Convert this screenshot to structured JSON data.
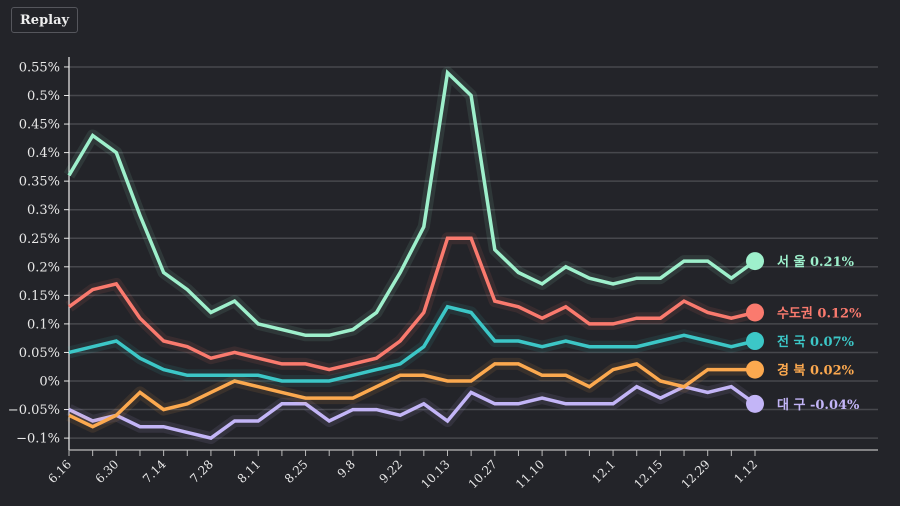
{
  "toolbar": {
    "replay_label": "Replay"
  },
  "chart_data": {
    "type": "line",
    "title": "",
    "xlabel": "",
    "ylabel": "",
    "ylim": [
      -0.12,
      0.57
    ],
    "grid": true,
    "legend_placement": "right (end-of-line labels)",
    "y_ticks": [
      {
        "value": 0.55,
        "label": "0.55%"
      },
      {
        "value": 0.5,
        "label": "0.5%"
      },
      {
        "value": 0.45,
        "label": "0.45%"
      },
      {
        "value": 0.4,
        "label": "0.4%"
      },
      {
        "value": 0.35,
        "label": "0.35%"
      },
      {
        "value": 0.3,
        "label": "0.3%"
      },
      {
        "value": 0.25,
        "label": "0.25%"
      },
      {
        "value": 0.2,
        "label": "0.2%"
      },
      {
        "value": 0.15,
        "label": "0.15%"
      },
      {
        "value": 0.1,
        "label": "0.1%"
      },
      {
        "value": 0.05,
        "label": "0.05%"
      },
      {
        "value": 0,
        "label": "0%"
      },
      {
        "value": -0.05,
        "label": "−0.05%"
      },
      {
        "value": -0.1,
        "label": "−0.1%"
      }
    ],
    "x_count": 30,
    "x_ticks": [
      {
        "index": 0,
        "label": "6.16"
      },
      {
        "index": 2,
        "label": "6.30"
      },
      {
        "index": 4,
        "label": "7.14"
      },
      {
        "index": 6,
        "label": "7.28"
      },
      {
        "index": 8,
        "label": "8.11"
      },
      {
        "index": 10,
        "label": "8.25"
      },
      {
        "index": 12,
        "label": "9.8"
      },
      {
        "index": 14,
        "label": "9.22"
      },
      {
        "index": 16,
        "label": "10.13"
      },
      {
        "index": 18,
        "label": "10.27"
      },
      {
        "index": 20,
        "label": "11.10"
      },
      {
        "index": 23,
        "label": "12.1"
      },
      {
        "index": 25,
        "label": "12.15"
      },
      {
        "index": 27,
        "label": "12.29"
      },
      {
        "index": 29,
        "label": "1.12"
      }
    ],
    "series": [
      {
        "name": "서 울",
        "end_label": "0.21%",
        "color": "#9ef0cc",
        "values": [
          0.36,
          0.43,
          0.4,
          0.29,
          0.19,
          0.16,
          0.12,
          0.14,
          0.1,
          0.09,
          0.08,
          0.08,
          0.09,
          0.12,
          0.19,
          0.27,
          0.54,
          0.5,
          0.23,
          0.19,
          0.17,
          0.2,
          0.18,
          0.17,
          0.18,
          0.18,
          0.21,
          0.21,
          0.18,
          0.21
        ]
      },
      {
        "name": "수도권",
        "end_label": "0.12%",
        "color": "#fa7a6e",
        "values": [
          0.13,
          0.16,
          0.17,
          0.11,
          0.07,
          0.06,
          0.04,
          0.05,
          0.04,
          0.03,
          0.03,
          0.02,
          0.03,
          0.04,
          0.07,
          0.12,
          0.25,
          0.25,
          0.14,
          0.13,
          0.11,
          0.13,
          0.1,
          0.1,
          0.11,
          0.11,
          0.14,
          0.12,
          0.11,
          0.12
        ]
      },
      {
        "name": "전 국",
        "end_label": "0.07%",
        "color": "#3cc7c7",
        "values": [
          0.05,
          0.06,
          0.07,
          0.04,
          0.02,
          0.01,
          0.01,
          0.01,
          0.01,
          0.0,
          0.0,
          0.0,
          0.01,
          0.02,
          0.03,
          0.06,
          0.13,
          0.12,
          0.07,
          0.07,
          0.06,
          0.07,
          0.06,
          0.06,
          0.06,
          0.07,
          0.08,
          0.07,
          0.06,
          0.07
        ]
      },
      {
        "name": "경 북",
        "end_label": "0.02%",
        "color": "#fca94f",
        "values": [
          -0.06,
          -0.08,
          -0.06,
          -0.02,
          -0.05,
          -0.04,
          -0.02,
          0.0,
          -0.01,
          -0.02,
          -0.03,
          -0.03,
          -0.03,
          -0.01,
          0.01,
          0.01,
          0.0,
          0.0,
          0.03,
          0.03,
          0.01,
          0.01,
          -0.01,
          0.02,
          0.03,
          0.0,
          -0.01,
          0.02,
          0.02,
          0.02
        ]
      },
      {
        "name": "대 구",
        "end_label": "-0.04%",
        "color": "#c3b5f7",
        "values": [
          -0.05,
          -0.07,
          -0.06,
          -0.08,
          -0.08,
          -0.09,
          -0.1,
          -0.07,
          -0.07,
          -0.04,
          -0.04,
          -0.07,
          -0.05,
          -0.05,
          -0.06,
          -0.04,
          -0.07,
          -0.02,
          -0.04,
          -0.04,
          -0.03,
          -0.04,
          -0.04,
          -0.04,
          -0.01,
          -0.03,
          -0.01,
          -0.02,
          -0.01,
          -0.04
        ]
      }
    ]
  }
}
